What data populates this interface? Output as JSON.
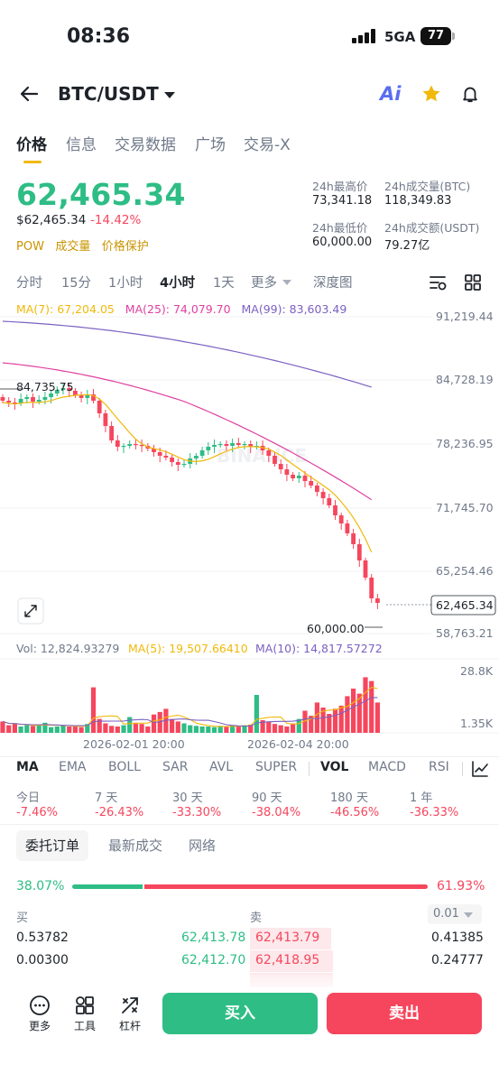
{
  "status_bar": {
    "time": "08:36",
    "network": "5GA",
    "battery": "77"
  },
  "header": {
    "pair": "BTC/USDT",
    "ai_label": "Ai"
  },
  "tabs": [
    "价格",
    "信息",
    "交易数据",
    "广场",
    "交易-X"
  ],
  "price": {
    "last": "62,465.34",
    "usd": "$62,465.34",
    "change": "-14.42%",
    "tags": [
      "POW",
      "成交量",
      "价格保护"
    ]
  },
  "stats": {
    "high_label": "24h最高价",
    "high": "73,341.18",
    "vol_btc_label": "24h成交量(BTC)",
    "vol_btc": "118,349.83",
    "low_label": "24h最低价",
    "low": "60,000.00",
    "vol_usdt_label": "24h成交额(USDT)",
    "vol_usdt": "79.27亿"
  },
  "timeframes": [
    "分时",
    "15分",
    "1小时",
    "4小时",
    "1天",
    "更多",
    "深度图"
  ],
  "active_timeframe": "4小时",
  "ma_legend": [
    {
      "label": "MA(7): 67,204.05",
      "color": "#f0b90b"
    },
    {
      "label": "MA(25): 74,079.70",
      "color": "#e040a0"
    },
    {
      "label": "MA(99): 83,603.49",
      "color": "#7b61c2"
    }
  ],
  "vol_legend": [
    {
      "label": "Vol: 12,824.93279",
      "color": "#707a8a"
    },
    {
      "label": "MA(5): 19,507.66410",
      "color": "#f0b90b"
    },
    {
      "label": "MA(10): 14,817.57272",
      "color": "#7b61c2"
    }
  ],
  "chart_data": {
    "type": "candlestick",
    "price_ticks": [
      "91,219.44",
      "84,728.19",
      "78,236.95",
      "71,745.70",
      "65,254.46",
      "58,763.21"
    ],
    "current_price_tag": "62,465.34",
    "high_marker": "84,735.75",
    "low_marker": "60,000.00",
    "volume_ticks": [
      "28.8K",
      "1.35K"
    ],
    "x_labels": [
      "2026-02-01 20:00",
      "2026-02-04 20:00"
    ],
    "watermark": "BINANCE"
  },
  "indicators": [
    "MA",
    "EMA",
    "BOLL",
    "SAR",
    "AVL",
    "SUPER",
    "VOL",
    "MACD",
    "RSI"
  ],
  "performance": [
    {
      "label": "今日",
      "value": "-7.46%"
    },
    {
      "label": "7 天",
      "value": "-26.43%"
    },
    {
      "label": "30 天",
      "value": "-33.30%"
    },
    {
      "label": "90 天",
      "value": "-38.04%"
    },
    {
      "label": "180 天",
      "value": "-46.56%"
    },
    {
      "label": "1 年",
      "value": "-36.33%"
    }
  ],
  "orderbook": {
    "tabs": [
      "委托订单",
      "最新成交",
      "网络"
    ],
    "buy_ratio": "38.07%",
    "sell_ratio": "61.93%",
    "buy_ratio_value": 0.3807,
    "buy_label": "买",
    "sell_label": "卖",
    "depth": "0.01",
    "rows": [
      {
        "bid_qty": "0.53782",
        "bid_price": "62,413.78",
        "ask_price": "62,413.79",
        "ask_qty": "0.41385"
      },
      {
        "bid_qty": "0.00300",
        "bid_price": "62,412.70",
        "ask_price": "62,418.95",
        "ask_qty": "0.24777"
      }
    ]
  },
  "bottom_bar": {
    "more": "更多",
    "tools": "工具",
    "leverage": "杠杆",
    "buy": "买入",
    "sell": "卖出"
  }
}
